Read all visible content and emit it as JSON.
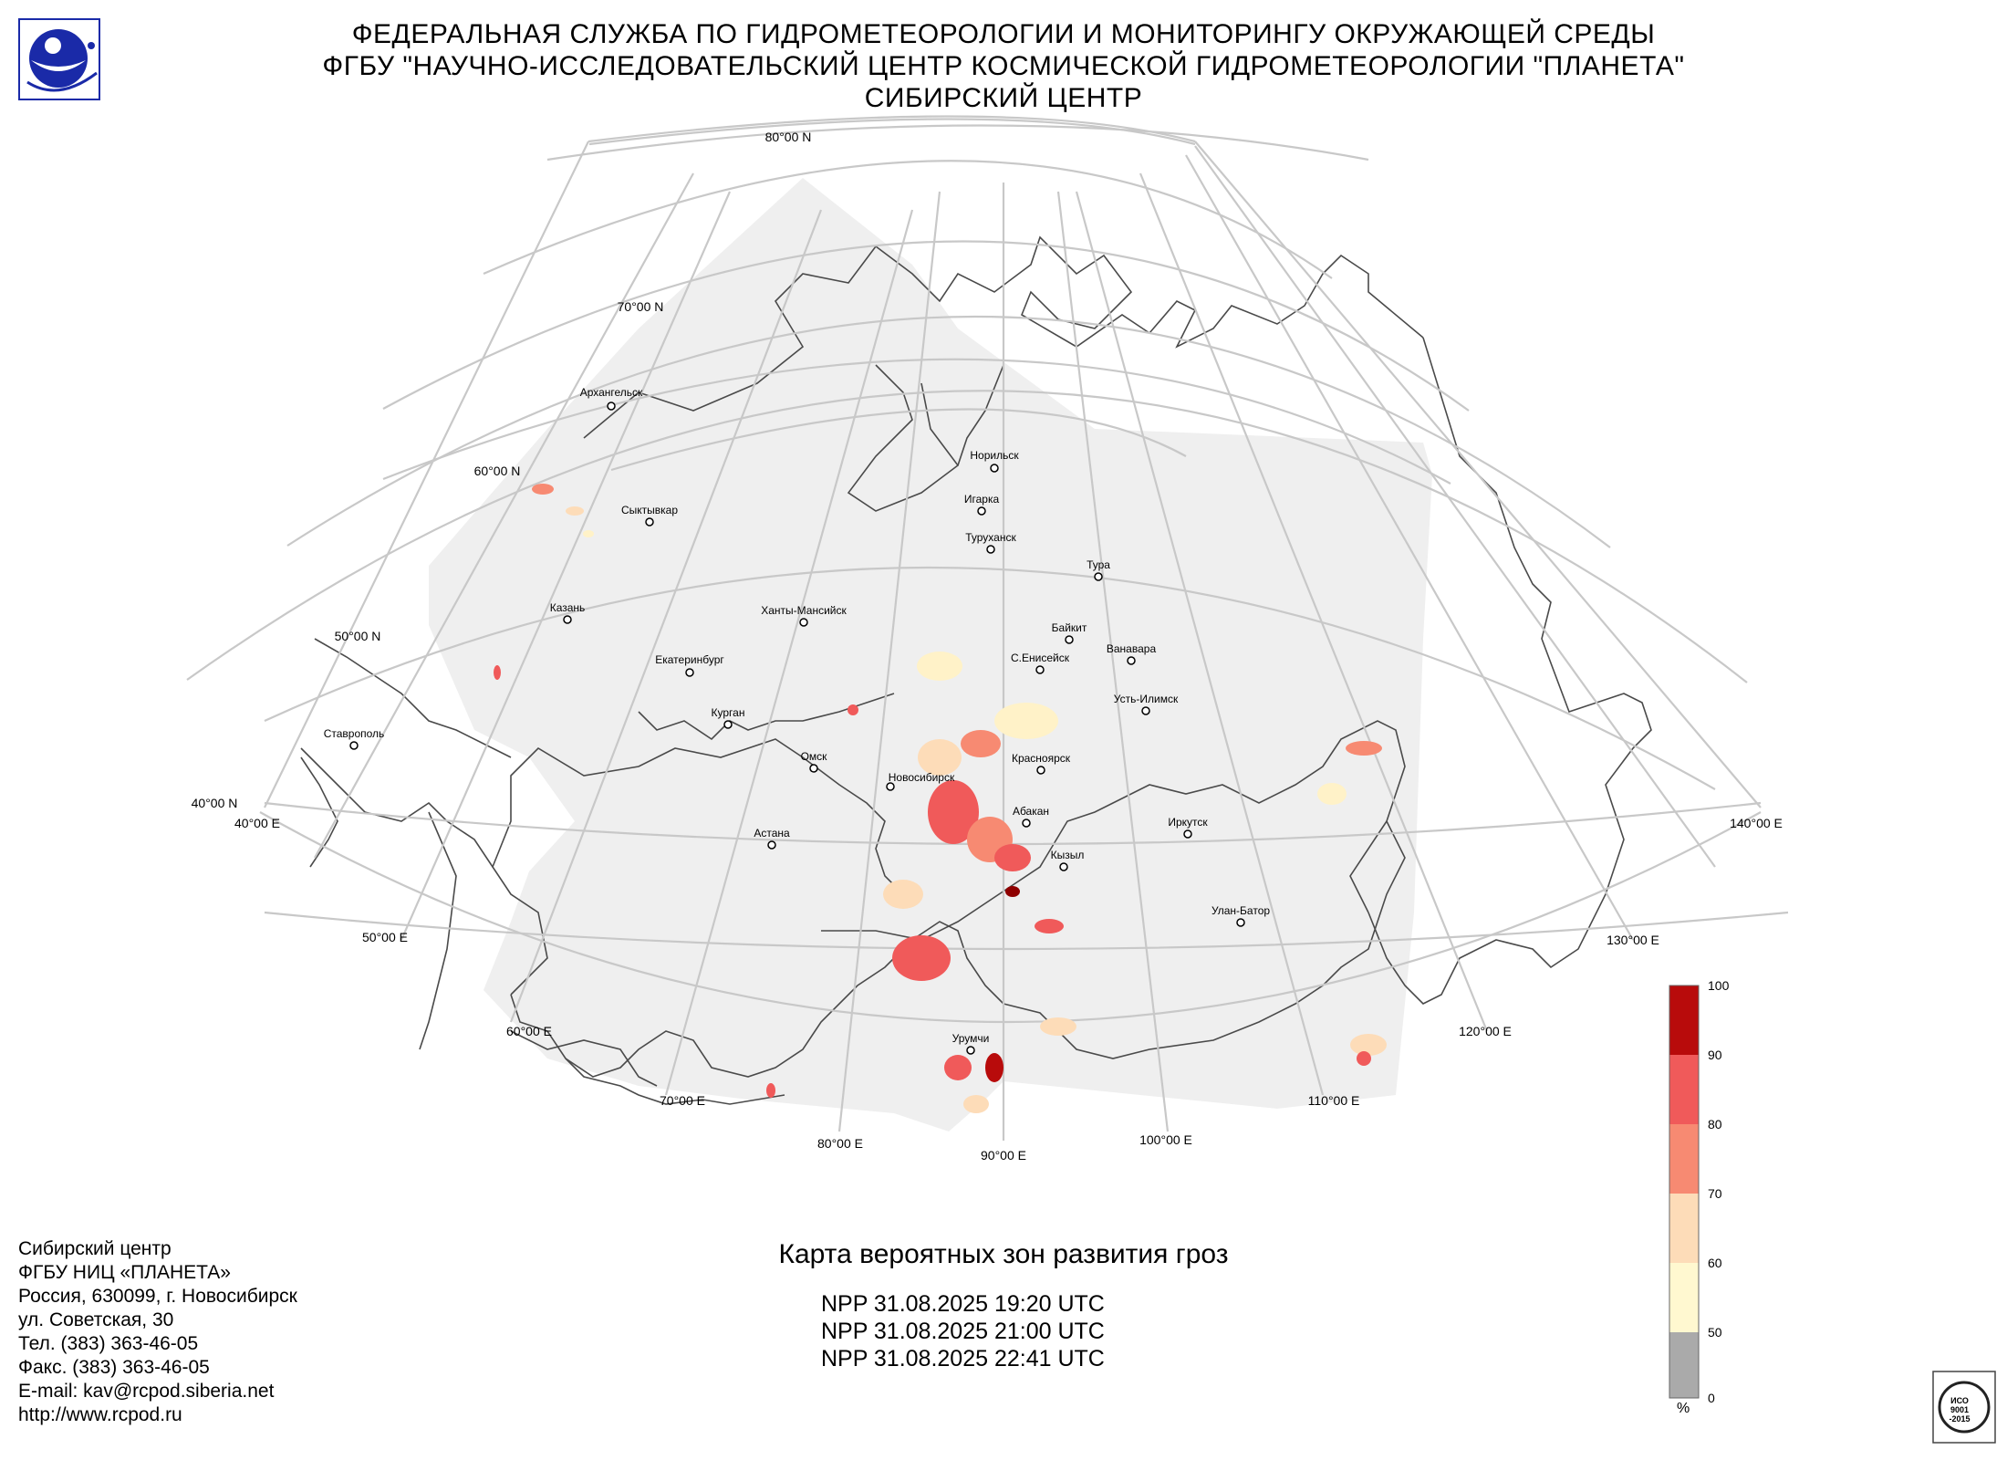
{
  "header": {
    "line1": "ФЕДЕРАЛЬНАЯ СЛУЖБА ПО ГИДРОМЕТЕОРОЛОГИИ И МОНИТОРИНГУ ОКРУЖАЮЩЕЙ СРЕДЫ",
    "line2": "ФГБУ \"НАУЧНО-ИССЛЕДОВАТЕЛЬСКИЙ ЦЕНТР КОСМИЧЕСКОЙ ГИДРОМЕТЕОРОЛОГИИ \"ПЛАНЕТА\"",
    "line3": "СИБИРСКИЙ ЦЕНТР"
  },
  "map": {
    "latitude_labels": [
      "80°00 N",
      "70°00 N",
      "60°00 N",
      "50°00 N",
      "40°00 N"
    ],
    "longitude_labels": [
      "40°00 E",
      "50°00 E",
      "60°00 E",
      "70°00 E",
      "80°00 E",
      "90°00 E",
      "100°00 E",
      "110°00 E",
      "120°00 E",
      "130°00 E",
      "140°00 E"
    ],
    "cities": [
      "Архангельск",
      "Норильск",
      "Игарка",
      "Туруханск",
      "Сыктывкар",
      "Тура",
      "Казань",
      "Ханты-Мансийск",
      "Байкит",
      "Ванавара",
      "Екатеринбург",
      "С.Енисейск",
      "Усть-Илимск",
      "Ставрополь",
      "Курган",
      "Омск",
      "Красноярск",
      "Новосибирск",
      "Абакан",
      "Иркутск",
      "Астана",
      "Кызыл",
      "Улан-Батор",
      "Урумчи"
    ]
  },
  "legend": {
    "ticks": [
      "100",
      "90",
      "80",
      "70",
      "60",
      "50",
      "0"
    ],
    "unit": "%",
    "colors": [
      "#b80b0b",
      "#f05a5a",
      "#f78a72",
      "#fddcb8",
      "#fff8d0",
      "#aaaaaa"
    ]
  },
  "footer": {
    "contacts": [
      "Сибирский центр",
      "ФГБУ НИЦ «ПЛАНЕТА»",
      "Россия, 630099, г. Новосибирск",
      "ул. Советская, 30",
      "Тел. (383) 363-46-05",
      "Факс. (383) 363-46-05",
      "E-mail: kav@rcpod.siberia.net",
      "http://www.rcpod.ru"
    ],
    "map_title": "Карта вероятных зон развития гроз",
    "passes": [
      "NPP 31.08.2025  19:20 UTC",
      "NPP 31.08.2025  21:00 UTC",
      "NPP 31.08.2025  22:41 UTC"
    ]
  },
  "iso_badge": {
    "text1": "ИСО",
    "text2": "9001",
    "text3": "-2015"
  }
}
